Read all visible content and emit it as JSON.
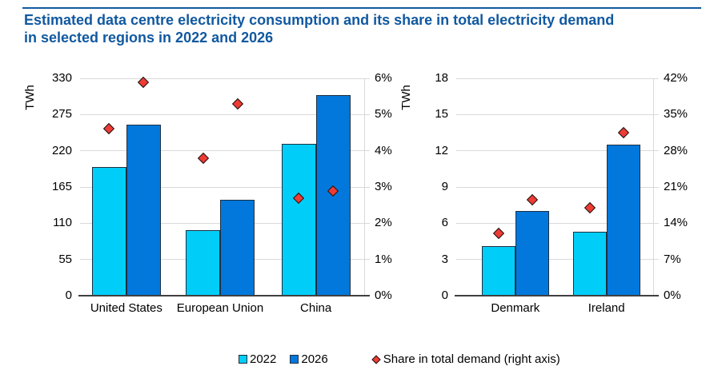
{
  "header": {
    "title": "Estimated data centre electricity consumption and its share in total electricity demand\nin selected regions in 2022 and 2026"
  },
  "legend": {
    "items": [
      {
        "label": "2022",
        "marker": "square-cyan"
      },
      {
        "label": "2026",
        "marker": "square-blue"
      },
      {
        "label": "Share in total demand (right axis)",
        "marker": "red-diamond"
      }
    ]
  },
  "chart_data": [
    {
      "type": "bar",
      "ylabel": "TWh",
      "categories": [
        "United States",
        "European Union",
        "China"
      ],
      "series": [
        {
          "name": "2022",
          "values": [
            195,
            100,
            230
          ]
        },
        {
          "name": "2026",
          "values": [
            260,
            145,
            305
          ]
        }
      ],
      "share_markers": {
        "name": "Share in total demand (right axis)",
        "series": [
          {
            "name": "2022",
            "values": [
              4.6,
              3.8,
              2.7
            ]
          },
          {
            "name": "2026",
            "values": [
              5.9,
              5.3,
              2.9
            ]
          }
        ]
      },
      "left_axis": {
        "min": 0,
        "max": 330,
        "ticks": [
          0,
          55,
          110,
          165,
          220,
          275,
          330
        ],
        "unit": "TWh"
      },
      "right_axis": {
        "min": 0,
        "max": 6,
        "ticks": [
          0,
          1,
          2,
          3,
          4,
          5,
          6
        ],
        "suffix": "%"
      },
      "grid": true,
      "legend_position": "bottom"
    },
    {
      "type": "bar",
      "ylabel": "TWh",
      "categories": [
        "Denmark",
        "Ireland"
      ],
      "series": [
        {
          "name": "2022",
          "values": [
            4.1,
            5.3
          ]
        },
        {
          "name": "2026",
          "values": [
            7.0,
            12.5
          ]
        }
      ],
      "share_markers": {
        "name": "Share in total demand (right axis)",
        "series": [
          {
            "name": "2022",
            "values": [
              12,
              17
            ]
          },
          {
            "name": "2026",
            "values": [
              18.6,
              31.5
            ]
          }
        ]
      },
      "left_axis": {
        "min": 0,
        "max": 18,
        "ticks": [
          0,
          3,
          6,
          9,
          12,
          15,
          18
        ],
        "unit": "TWh"
      },
      "right_axis": {
        "min": 0,
        "max": 42,
        "ticks": [
          0,
          7,
          14,
          21,
          28,
          35,
          42
        ],
        "suffix": "%"
      },
      "grid": true,
      "legend_position": "bottom"
    }
  ],
  "colors": {
    "title": "#1159A0",
    "rule": "#1159A0",
    "bar_2022": "#00CEF8",
    "bar_2026": "#0278DC",
    "bar_border": "#1E2F40",
    "marker_fill": "#EE3B33",
    "marker_border": "#161616",
    "gridline": "#D9D9D9",
    "axis_line": "#404040",
    "text": "#000000"
  }
}
